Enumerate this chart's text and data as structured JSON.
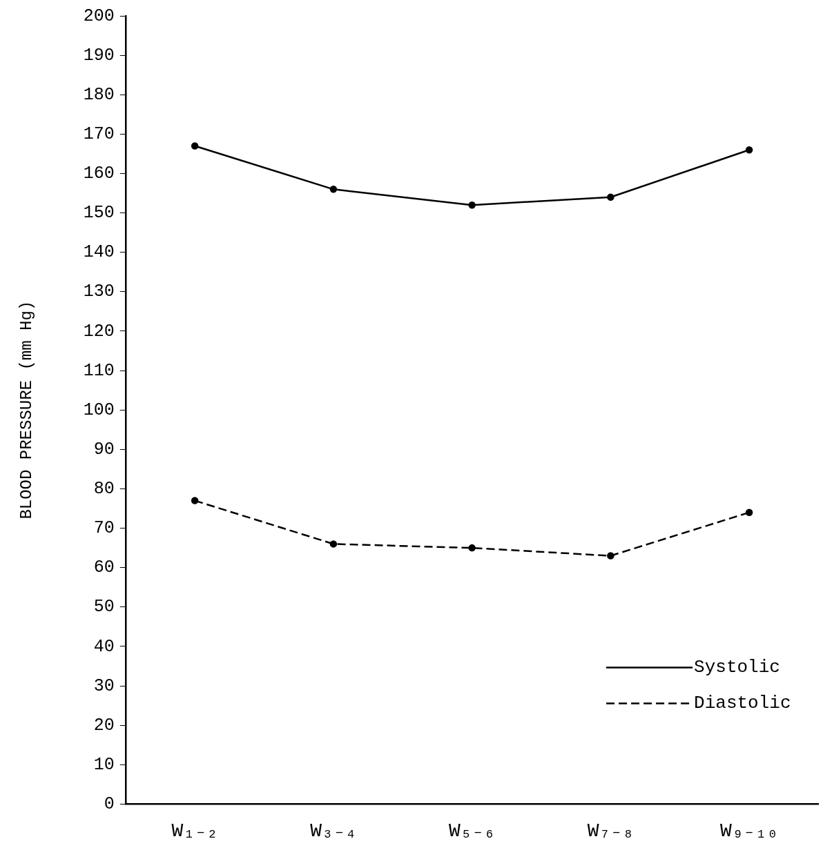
{
  "chart_data": {
    "type": "line",
    "ylabel": "BLOOD PRESSURE (mm Hg)",
    "categories": [
      "W₁₋₂",
      "W₃₋₄",
      "W₅₋₆",
      "W₇₋₈",
      "W₉₋₁₀"
    ],
    "series": [
      {
        "name": "Systolic",
        "color": "#000000",
        "line_style": "solid",
        "values": [
          167,
          156,
          152,
          154,
          166
        ]
      },
      {
        "name": "Diastolic",
        "color": "#000000",
        "line_style": "dashed",
        "values": [
          77,
          66,
          65,
          63,
          74
        ]
      }
    ],
    "ylim": [
      0,
      200
    ],
    "yticks": [
      0,
      10,
      20,
      30,
      40,
      50,
      60,
      70,
      80,
      90,
      100,
      110,
      120,
      130,
      140,
      150,
      160,
      170,
      180,
      190,
      200
    ],
    "grid": false,
    "legend": "bottom right",
    "marker": "circle"
  }
}
